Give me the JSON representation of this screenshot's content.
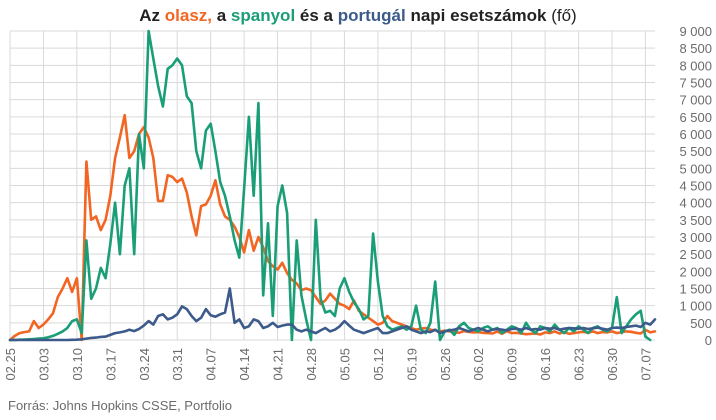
{
  "title": {
    "part1": "Az ",
    "italy": "olasz,",
    "part2": " a ",
    "spain": "spanyol",
    "part3": " és a ",
    "portugal": "portugál",
    "part4": " napi esetszámok",
    "unit": " (fő)"
  },
  "source": "Forrás: Johns Hopkins CSSE, Portfolio",
  "colors": {
    "italy": "#f26522",
    "spain": "#1a9e77",
    "portugal": "#3c5a8a",
    "grid": "#d9d9d9",
    "tick": "#6b6b6b"
  },
  "chart_data": {
    "type": "line",
    "title": "Az olasz, a spanyol és a portugál napi esetszámok (fő)",
    "ylim": [
      0,
      9000
    ],
    "yticks": [
      "0",
      "500",
      "1 000",
      "1 500",
      "2 000",
      "2 500",
      "3 000",
      "3 500",
      "4 000",
      "4 500",
      "5 000",
      "5 500",
      "6 000",
      "6 500",
      "7 000",
      "7 500",
      "8 000",
      "8 500",
      "9 000"
    ],
    "x_start": "02.25",
    "xticks": [
      "02.25",
      "03.03",
      "03.10",
      "03.17",
      "03.24",
      "03.31",
      "04.07",
      "04.14",
      "04.21",
      "04.28",
      "05.05",
      "05.12",
      "05.19",
      "05.26",
      "06.02",
      "06.09",
      "06.16",
      "06.23",
      "06.30",
      "07.07"
    ],
    "grid": true,
    "series": [
      {
        "name": "olasz",
        "values": [
          0,
          120,
          200,
          230,
          250,
          550,
          350,
          450,
          600,
          780,
          1250,
          1500,
          1800,
          1400,
          1800,
          0,
          5200,
          3500,
          3600,
          3200,
          3500,
          4200,
          5300,
          5900,
          6550,
          5300,
          5500,
          6000,
          6200,
          5900,
          5300,
          4050,
          4050,
          4800,
          4750,
          4600,
          4700,
          4300,
          3600,
          3050,
          3900,
          3950,
          4200,
          4650,
          3950,
          3600,
          3500,
          3300,
          3000,
          2550,
          3200,
          2600,
          3000,
          2700,
          2300,
          2150,
          2050,
          2250,
          1950,
          1750,
          1650,
          1450,
          1500,
          1450,
          1250,
          1050,
          1150,
          1350,
          1200,
          1050,
          1000,
          900,
          1150,
          850,
          750,
          650,
          550,
          450,
          500,
          700,
          550,
          500,
          450,
          400,
          350,
          300,
          330,
          350,
          300,
          280,
          250,
          270,
          250,
          230,
          210,
          260,
          240,
          220,
          230,
          210,
          200,
          190,
          250,
          180,
          260,
          200,
          210,
          190,
          170,
          180,
          190,
          160,
          220,
          200,
          250,
          190,
          230,
          180,
          200,
          220,
          240,
          210,
          250,
          200,
          230,
          220,
          250,
          200,
          230,
          250,
          240,
          210,
          190,
          300,
          220,
          250
        ]
      },
      {
        "name": "spanyol",
        "values": [
          0,
          0,
          10,
          15,
          20,
          30,
          40,
          50,
          80,
          120,
          180,
          250,
          350,
          550,
          600,
          200,
          2900,
          1200,
          1500,
          2100,
          1800,
          2800,
          4000,
          2500,
          4500,
          5000,
          2500,
          6000,
          5000,
          9000,
          8200,
          7400,
          6800,
          7900,
          8000,
          8200,
          8000,
          7100,
          6900,
          5500,
          5000,
          6100,
          6300,
          5500,
          4600,
          4200,
          3600,
          2900,
          2400,
          4400,
          6500,
          4200,
          6900,
          1300,
          3400,
          700,
          3900,
          4500,
          3700,
          0,
          2900,
          1300,
          600,
          0,
          3500,
          1200,
          800,
          850,
          700,
          1500,
          1800,
          1400,
          1100,
          900,
          600,
          700,
          3100,
          1700,
          700,
          400,
          300,
          350,
          400,
          300,
          400,
          1000,
          300,
          200,
          500,
          1700,
          0,
          250,
          300,
          150,
          400,
          500,
          350,
          300,
          250,
          350,
          400,
          300,
          350,
          200,
          300,
          400,
          350,
          200,
          500,
          300,
          200,
          400,
          350,
          250,
          450,
          300,
          200,
          350,
          250,
          400,
          300,
          200,
          350,
          400,
          300,
          250,
          350,
          1250,
          200,
          400,
          600,
          750,
          850,
          100,
          0
        ]
      },
      {
        "name": "portugál",
        "values": [
          0,
          0,
          0,
          0,
          0,
          0,
          0,
          0,
          0,
          0,
          0,
          0,
          0,
          5,
          10,
          20,
          40,
          60,
          70,
          90,
          100,
          150,
          200,
          220,
          250,
          300,
          260,
          320,
          420,
          550,
          450,
          700,
          750,
          600,
          650,
          750,
          980,
          900,
          700,
          550,
          650,
          900,
          720,
          680,
          750,
          800,
          1500,
          500,
          600,
          350,
          400,
          600,
          550,
          350,
          400,
          500,
          380,
          420,
          450,
          450,
          300,
          250,
          300,
          250,
          200,
          280,
          350,
          250,
          300,
          400,
          550,
          420,
          300,
          250,
          200,
          250,
          300,
          350,
          200,
          200,
          250,
          300,
          350,
          400,
          300,
          250,
          200,
          250,
          230,
          300,
          200,
          250,
          280,
          300,
          350,
          300,
          250,
          300,
          350,
          300,
          250,
          300,
          320,
          300,
          280,
          320,
          330,
          300,
          350,
          300,
          320,
          300,
          350,
          330,
          350,
          300,
          330,
          350,
          340,
          330,
          350,
          320,
          340,
          360,
          330,
          300,
          350,
          360,
          350,
          380,
          400,
          420,
          380,
          500,
          450,
          600
        ]
      }
    ]
  }
}
